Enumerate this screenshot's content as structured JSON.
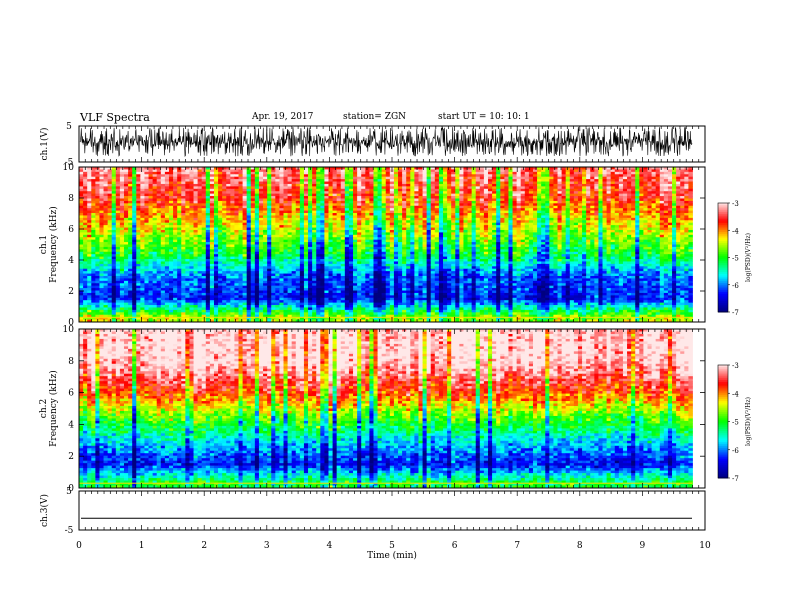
{
  "header": {
    "title": "VLF Spectra",
    "date": "Apr. 19, 2017",
    "station": "station= ZGN",
    "start": "start  UT =   10: 10: 1"
  },
  "colors": {
    "colormap": [
      "#00007f",
      "#0000ff",
      "#00ffff",
      "#00ff00",
      "#ffff00",
      "#ff0000",
      "#ffe8e8"
    ],
    "waveform": "#000000"
  },
  "chart_data": [
    {
      "type": "line",
      "title": "",
      "ylabel": "ch.1(V)",
      "ylim": [
        -5,
        5
      ],
      "yticks": [
        "5",
        "-5"
      ],
      "xlim": [
        0,
        10
      ],
      "series": [
        {
          "description": "dense noisy waveform",
          "approx_range": [
            -3.5,
            5
          ]
        }
      ]
    },
    {
      "type": "heatmap",
      "ylabel": "ch.1 Frequency (kHz)",
      "ylim": [
        0,
        10
      ],
      "yticks": [
        "0",
        "2",
        "4",
        "6",
        "8",
        "10"
      ],
      "xlim": [
        0,
        9.8
      ],
      "colorbar": {
        "label": "log(PSD)(V²/Hz)",
        "range": [
          -7,
          -3
        ],
        "ticks": [
          "-3",
          "-4",
          "-5",
          "-6",
          "-7"
        ]
      },
      "profile": [
        {
          "freq_khz": 0.3,
          "log_psd": -4.5
        },
        {
          "freq_khz": 1.5,
          "log_psd": -6.3
        },
        {
          "freq_khz": 3.0,
          "log_psd": -6.0
        },
        {
          "freq_khz": 4.5,
          "log_psd": -5.0
        },
        {
          "freq_khz": 6.0,
          "log_psd": -4.4
        },
        {
          "freq_khz": 8.0,
          "log_psd": -3.6
        },
        {
          "freq_khz": 9.8,
          "log_psd": -3.3
        }
      ]
    },
    {
      "type": "heatmap",
      "ylabel": "ch.2 Frequency (kHz)",
      "ylim": [
        0,
        10
      ],
      "yticks": [
        "0",
        "2",
        "4",
        "6",
        "8",
        "10"
      ],
      "xlim": [
        0,
        9.8
      ],
      "colorbar": {
        "label": "log(PSD)(V²/Hz)",
        "range": [
          -7,
          -3
        ],
        "ticks": [
          "-3",
          "-4",
          "-5",
          "-6",
          "-7"
        ]
      },
      "profile": [
        {
          "freq_khz": 0.3,
          "log_psd": -5.2
        },
        {
          "freq_khz": 1.5,
          "log_psd": -6.5
        },
        {
          "freq_khz": 3.0,
          "log_psd": -5.8
        },
        {
          "freq_khz": 4.5,
          "log_psd": -4.9
        },
        {
          "freq_khz": 6.0,
          "log_psd": -3.9
        },
        {
          "freq_khz": 8.0,
          "log_psd": -3.1
        },
        {
          "freq_khz": 9.8,
          "log_psd": -3.1
        }
      ]
    },
    {
      "type": "line",
      "ylabel": "ch.3(V)",
      "ylim": [
        -5,
        5
      ],
      "yticks": [
        "5",
        "-5"
      ],
      "xlabel": "Time (min)",
      "xlim": [
        0,
        10
      ],
      "xticks": [
        "0",
        "1",
        "2",
        "3",
        "4",
        "5",
        "6",
        "7",
        "8",
        "9",
        "10"
      ],
      "series": [
        {
          "description": "flat line",
          "y": -2
        }
      ]
    }
  ]
}
